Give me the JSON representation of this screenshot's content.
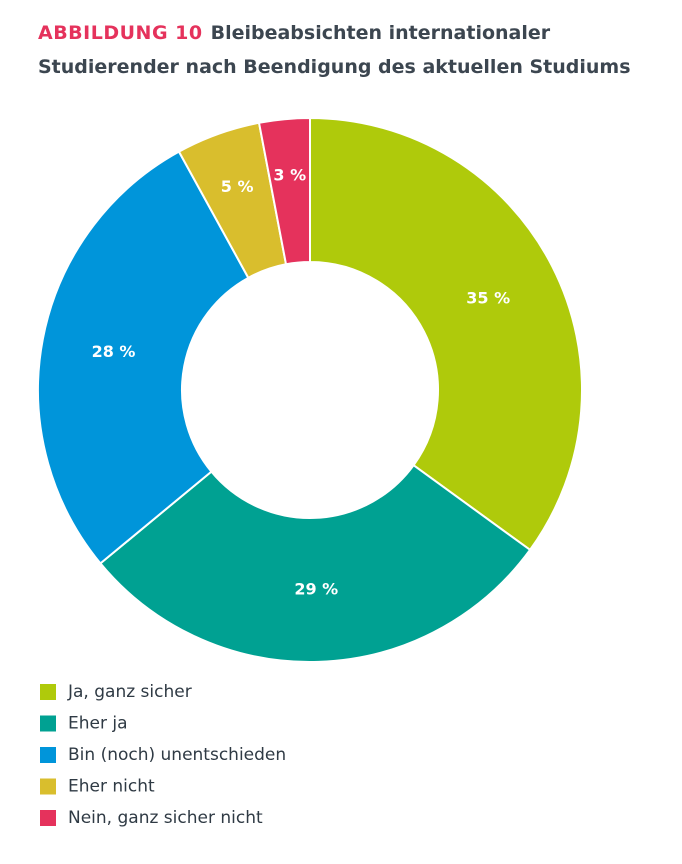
{
  "chart_data": {
    "type": "donut",
    "label": "ABBILDUNG 10",
    "title": "Bleibeabsichten internationaler Studierender nach Beendigung des aktuellen Studiums",
    "categories": [
      "Ja, ganz sicher",
      "Eher ja",
      "Bin (noch) unentschieden",
      "Eher nicht",
      "Nein, ganz sicher nicht"
    ],
    "values": [
      35,
      29,
      28,
      5,
      3
    ],
    "value_labels": [
      "35 %",
      "29 %",
      "28 %",
      "5 %",
      "3 %"
    ],
    "colors": [
      "#afca0b",
      "#00a192",
      "#0095da",
      "#d9be2d",
      "#e5325c"
    ]
  }
}
